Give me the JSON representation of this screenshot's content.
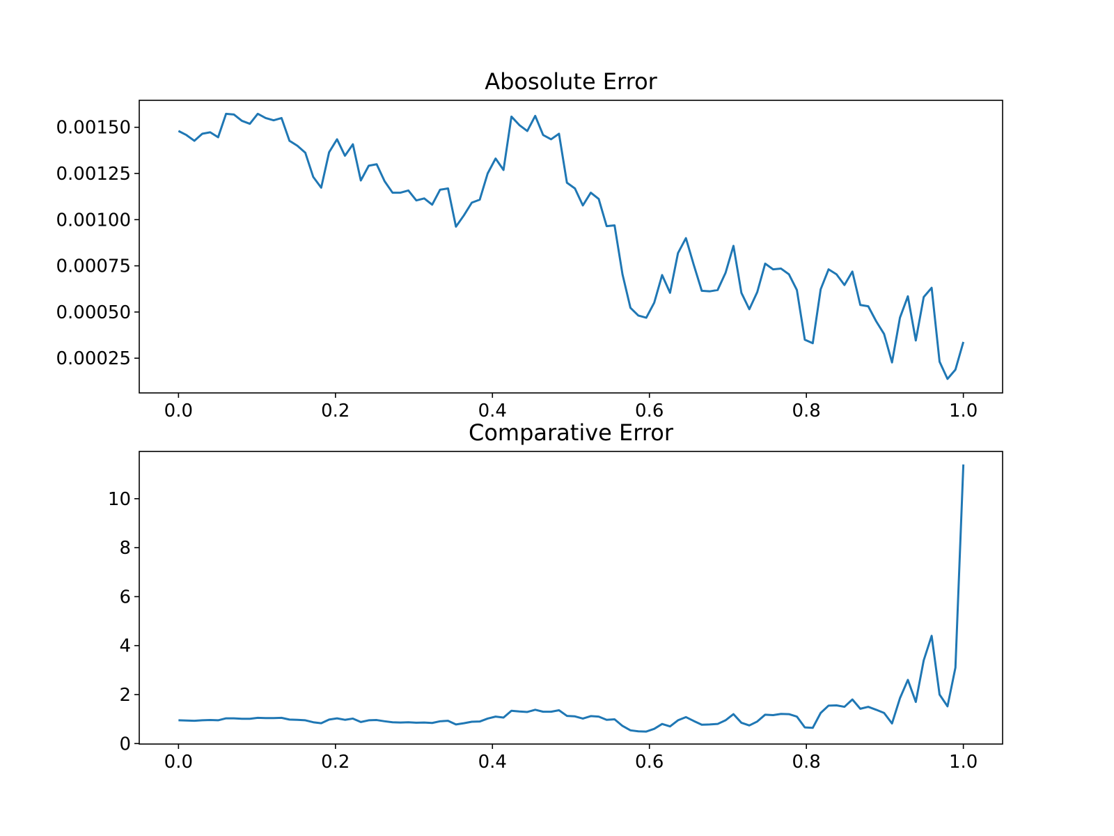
{
  "chart_data": [
    {
      "type": "line",
      "title": "Abosolute Error",
      "x": [
        0,
        0.0101,
        0.0202,
        0.0303,
        0.0404,
        0.0505,
        0.0606,
        0.0707,
        0.0808,
        0.0909,
        0.101,
        0.1111,
        0.1212,
        0.1313,
        0.1414,
        0.1515,
        0.1616,
        0.1717,
        0.1818,
        0.1919,
        0.202,
        0.2121,
        0.2222,
        0.2323,
        0.2424,
        0.2525,
        0.2626,
        0.2727,
        0.2828,
        0.2929,
        0.303,
        0.3131,
        0.3232,
        0.3333,
        0.3434,
        0.3535,
        0.3636,
        0.3737,
        0.3838,
        0.3939,
        0.404,
        0.4141,
        0.4242,
        0.4343,
        0.4444,
        0.4545,
        0.4646,
        0.4747,
        0.4848,
        0.4949,
        0.5051,
        0.5152,
        0.5253,
        0.5354,
        0.5455,
        0.5556,
        0.5657,
        0.5758,
        0.5859,
        0.596,
        0.6061,
        0.6162,
        0.6263,
        0.6364,
        0.6465,
        0.6566,
        0.6667,
        0.6768,
        0.6869,
        0.697,
        0.7071,
        0.7172,
        0.7273,
        0.7374,
        0.7475,
        0.7576,
        0.7677,
        0.7778,
        0.7879,
        0.798,
        0.8081,
        0.8182,
        0.8283,
        0.8384,
        0.8485,
        0.8586,
        0.8687,
        0.8788,
        0.8889,
        0.899,
        0.9091,
        0.9192,
        0.9293,
        0.9394,
        0.9495,
        0.9596,
        0.9697,
        0.9798,
        0.9899,
        1
      ],
      "values": [
        0.00148,
        0.001458,
        0.001427,
        0.001465,
        0.001473,
        0.001446,
        0.001573,
        0.001569,
        0.001535,
        0.001519,
        0.001573,
        0.00155,
        0.001538,
        0.00155,
        0.001427,
        0.0014,
        0.001362,
        0.001231,
        0.001173,
        0.001365,
        0.001435,
        0.001346,
        0.001408,
        0.001212,
        0.001292,
        0.0013,
        0.001208,
        0.001146,
        0.001146,
        0.001158,
        0.001104,
        0.001115,
        0.001081,
        0.001162,
        0.001169,
        0.000962,
        0.001023,
        0.001092,
        0.001108,
        0.00125,
        0.001331,
        0.001269,
        0.001558,
        0.001512,
        0.00148,
        0.001562,
        0.001458,
        0.001435,
        0.001465,
        0.0012,
        0.001169,
        0.001077,
        0.001146,
        0.001112,
        0.000965,
        0.000969,
        0.000704,
        0.000523,
        0.000481,
        0.000469,
        0.00055,
        0.0007,
        0.000604,
        0.000819,
        0.0009,
        0.000754,
        0.000615,
        0.000612,
        0.000619,
        0.000712,
        0.000858,
        0.000604,
        0.000515,
        0.000608,
        0.000762,
        0.000731,
        0.000735,
        0.000704,
        0.000619,
        0.00035,
        0.000331,
        0.000623,
        0.000731,
        0.000704,
        0.000646,
        0.000719,
        0.000538,
        0.000531,
        0.00045,
        0.000381,
        0.000227,
        0.000469,
        0.000585,
        0.000346,
        0.000581,
        0.000631,
        0.000231,
        0.000138,
        0.000188,
        0.000338
      ],
      "color": "#1f77b4",
      "xlim": [
        -0.05,
        1.05
      ],
      "xticks": [
        {
          "value": 0,
          "label": "0.0"
        },
        0.2,
        0.4,
        0.6,
        0.8,
        {
          "value": 1,
          "label": "1.0"
        }
      ],
      "ylim": [
        6.2e-05,
        0.001646
      ],
      "yticks": [
        0.00025,
        {
          "value": 0.0005,
          "label": "0.00050"
        },
        0.00075,
        {
          "value": 0.001,
          "label": "0.00100"
        },
        0.00125,
        {
          "value": 0.0015,
          "label": "0.00150"
        }
      ]
    },
    {
      "type": "line",
      "title": "Comparative Error",
      "x": [
        0,
        0.0101,
        0.0202,
        0.0303,
        0.0404,
        0.0505,
        0.0606,
        0.0707,
        0.0808,
        0.0909,
        0.101,
        0.1111,
        0.1212,
        0.1313,
        0.1414,
        0.1515,
        0.1616,
        0.1717,
        0.1818,
        0.1919,
        0.202,
        0.2121,
        0.2222,
        0.2323,
        0.2424,
        0.2525,
        0.2626,
        0.2727,
        0.2828,
        0.2929,
        0.303,
        0.3131,
        0.3232,
        0.3333,
        0.3434,
        0.3535,
        0.3636,
        0.3737,
        0.3838,
        0.3939,
        0.404,
        0.4141,
        0.4242,
        0.4343,
        0.4444,
        0.4545,
        0.4646,
        0.4747,
        0.4848,
        0.4949,
        0.5051,
        0.5152,
        0.5253,
        0.5354,
        0.5455,
        0.5556,
        0.5657,
        0.5758,
        0.5859,
        0.596,
        0.6061,
        0.6162,
        0.6263,
        0.6364,
        0.6465,
        0.6566,
        0.6667,
        0.6768,
        0.6869,
        0.697,
        0.7071,
        0.7172,
        0.7273,
        0.7374,
        0.7475,
        0.7576,
        0.7677,
        0.7778,
        0.7879,
        0.798,
        0.8081,
        0.8182,
        0.8283,
        0.8384,
        0.8485,
        0.8586,
        0.8687,
        0.8788,
        0.8889,
        0.899,
        0.9091,
        0.9192,
        0.9293,
        0.9394,
        0.9495,
        0.9596,
        0.9697,
        0.9798,
        0.9899,
        1
      ],
      "values": [
        0.95,
        0.94,
        0.93,
        0.95,
        0.96,
        0.95,
        1.03,
        1.03,
        1.01,
        1.01,
        1.05,
        1.04,
        1.04,
        1.05,
        0.98,
        0.97,
        0.95,
        0.87,
        0.83,
        0.98,
        1.03,
        0.97,
        1.02,
        0.88,
        0.95,
        0.96,
        0.91,
        0.87,
        0.86,
        0.87,
        0.85,
        0.86,
        0.84,
        0.91,
        0.93,
        0.78,
        0.83,
        0.89,
        0.9,
        1.02,
        1.1,
        1.06,
        1.34,
        1.31,
        1.29,
        1.38,
        1.3,
        1.3,
        1.36,
        1.13,
        1.11,
        1.02,
        1.12,
        1.1,
        0.97,
        0.99,
        0.72,
        0.54,
        0.5,
        0.49,
        0.6,
        0.8,
        0.7,
        0.95,
        1.08,
        0.92,
        0.77,
        0.78,
        0.8,
        0.95,
        1.2,
        0.85,
        0.74,
        0.9,
        1.18,
        1.16,
        1.21,
        1.2,
        1.1,
        0.66,
        0.64,
        1.25,
        1.55,
        1.56,
        1.5,
        1.8,
        1.42,
        1.5,
        1.38,
        1.25,
        0.82,
        1.85,
        2.6,
        1.7,
        3.4,
        4.4,
        2.0,
        1.52,
        3.1,
        11.4
      ],
      "color": "#1f77b4",
      "xlim": [
        -0.05,
        1.05
      ],
      "xticks": [
        {
          "value": 0,
          "label": "0.0"
        },
        0.2,
        0.4,
        0.6,
        0.8,
        {
          "value": 1,
          "label": "1.0"
        }
      ],
      "ylim": [
        -0.02,
        11.93
      ],
      "yticks": [
        0,
        2,
        4,
        6,
        8,
        10
      ]
    }
  ]
}
